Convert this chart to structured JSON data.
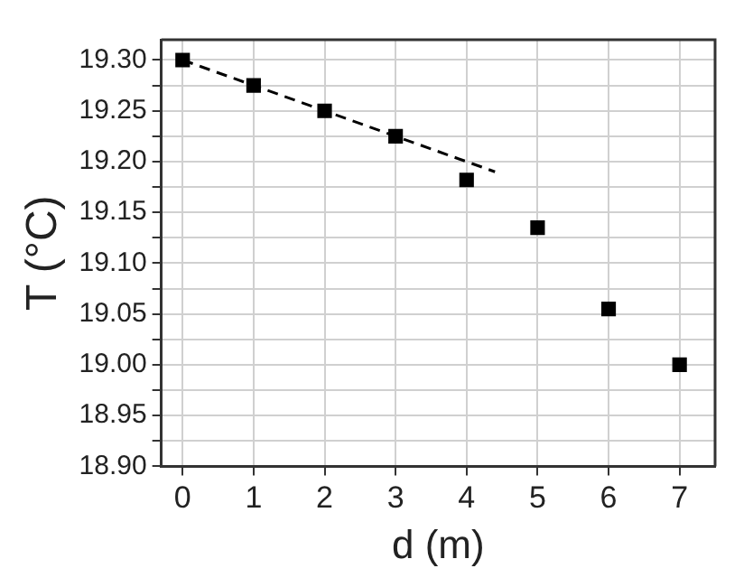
{
  "chart_data": {
    "type": "scatter",
    "xlabel": "d (m)",
    "ylabel": "T (°C)",
    "xlim": [
      -0.3,
      7.5
    ],
    "xticks": [
      0,
      1,
      2,
      3,
      4,
      5,
      6,
      7
    ],
    "ylim": [
      18.9,
      19.32
    ],
    "yticks": [
      {
        "value": 18.9,
        "label": "18.90"
      },
      {
        "value": 18.925,
        "label": null
      },
      {
        "value": 18.95,
        "label": "18.95"
      },
      {
        "value": 18.975,
        "label": null
      },
      {
        "value": 19.0,
        "label": "19.00"
      },
      {
        "value": 19.025,
        "label": null
      },
      {
        "value": 19.05,
        "label": "19.05"
      },
      {
        "value": 19.075,
        "label": null
      },
      {
        "value": 19.1,
        "label": "19.10"
      },
      {
        "value": 19.125,
        "label": null
      },
      {
        "value": 19.15,
        "label": "19.15"
      },
      {
        "value": 19.175,
        "label": null
      },
      {
        "value": 19.2,
        "label": "19.20"
      },
      {
        "value": 19.225,
        "label": null
      },
      {
        "value": 19.25,
        "label": "19.25"
      },
      {
        "value": 19.275,
        "label": null
      },
      {
        "value": 19.3,
        "label": "19.30"
      }
    ],
    "grid": true,
    "legend": false,
    "series": [
      {
        "type": "scatter",
        "color": "#000000",
        "marker": "square",
        "x": [
          0,
          1,
          2,
          3,
          4,
          5,
          6,
          7
        ],
        "values": [
          19.3,
          19.275,
          19.25,
          19.225,
          19.182,
          19.135,
          19.055,
          19.0
        ]
      },
      {
        "type": "line",
        "color": "#000000",
        "marker": "none",
        "line_style": "dashed",
        "x": [
          0,
          4.4
        ],
        "values": [
          19.3,
          19.19
        ]
      }
    ]
  }
}
